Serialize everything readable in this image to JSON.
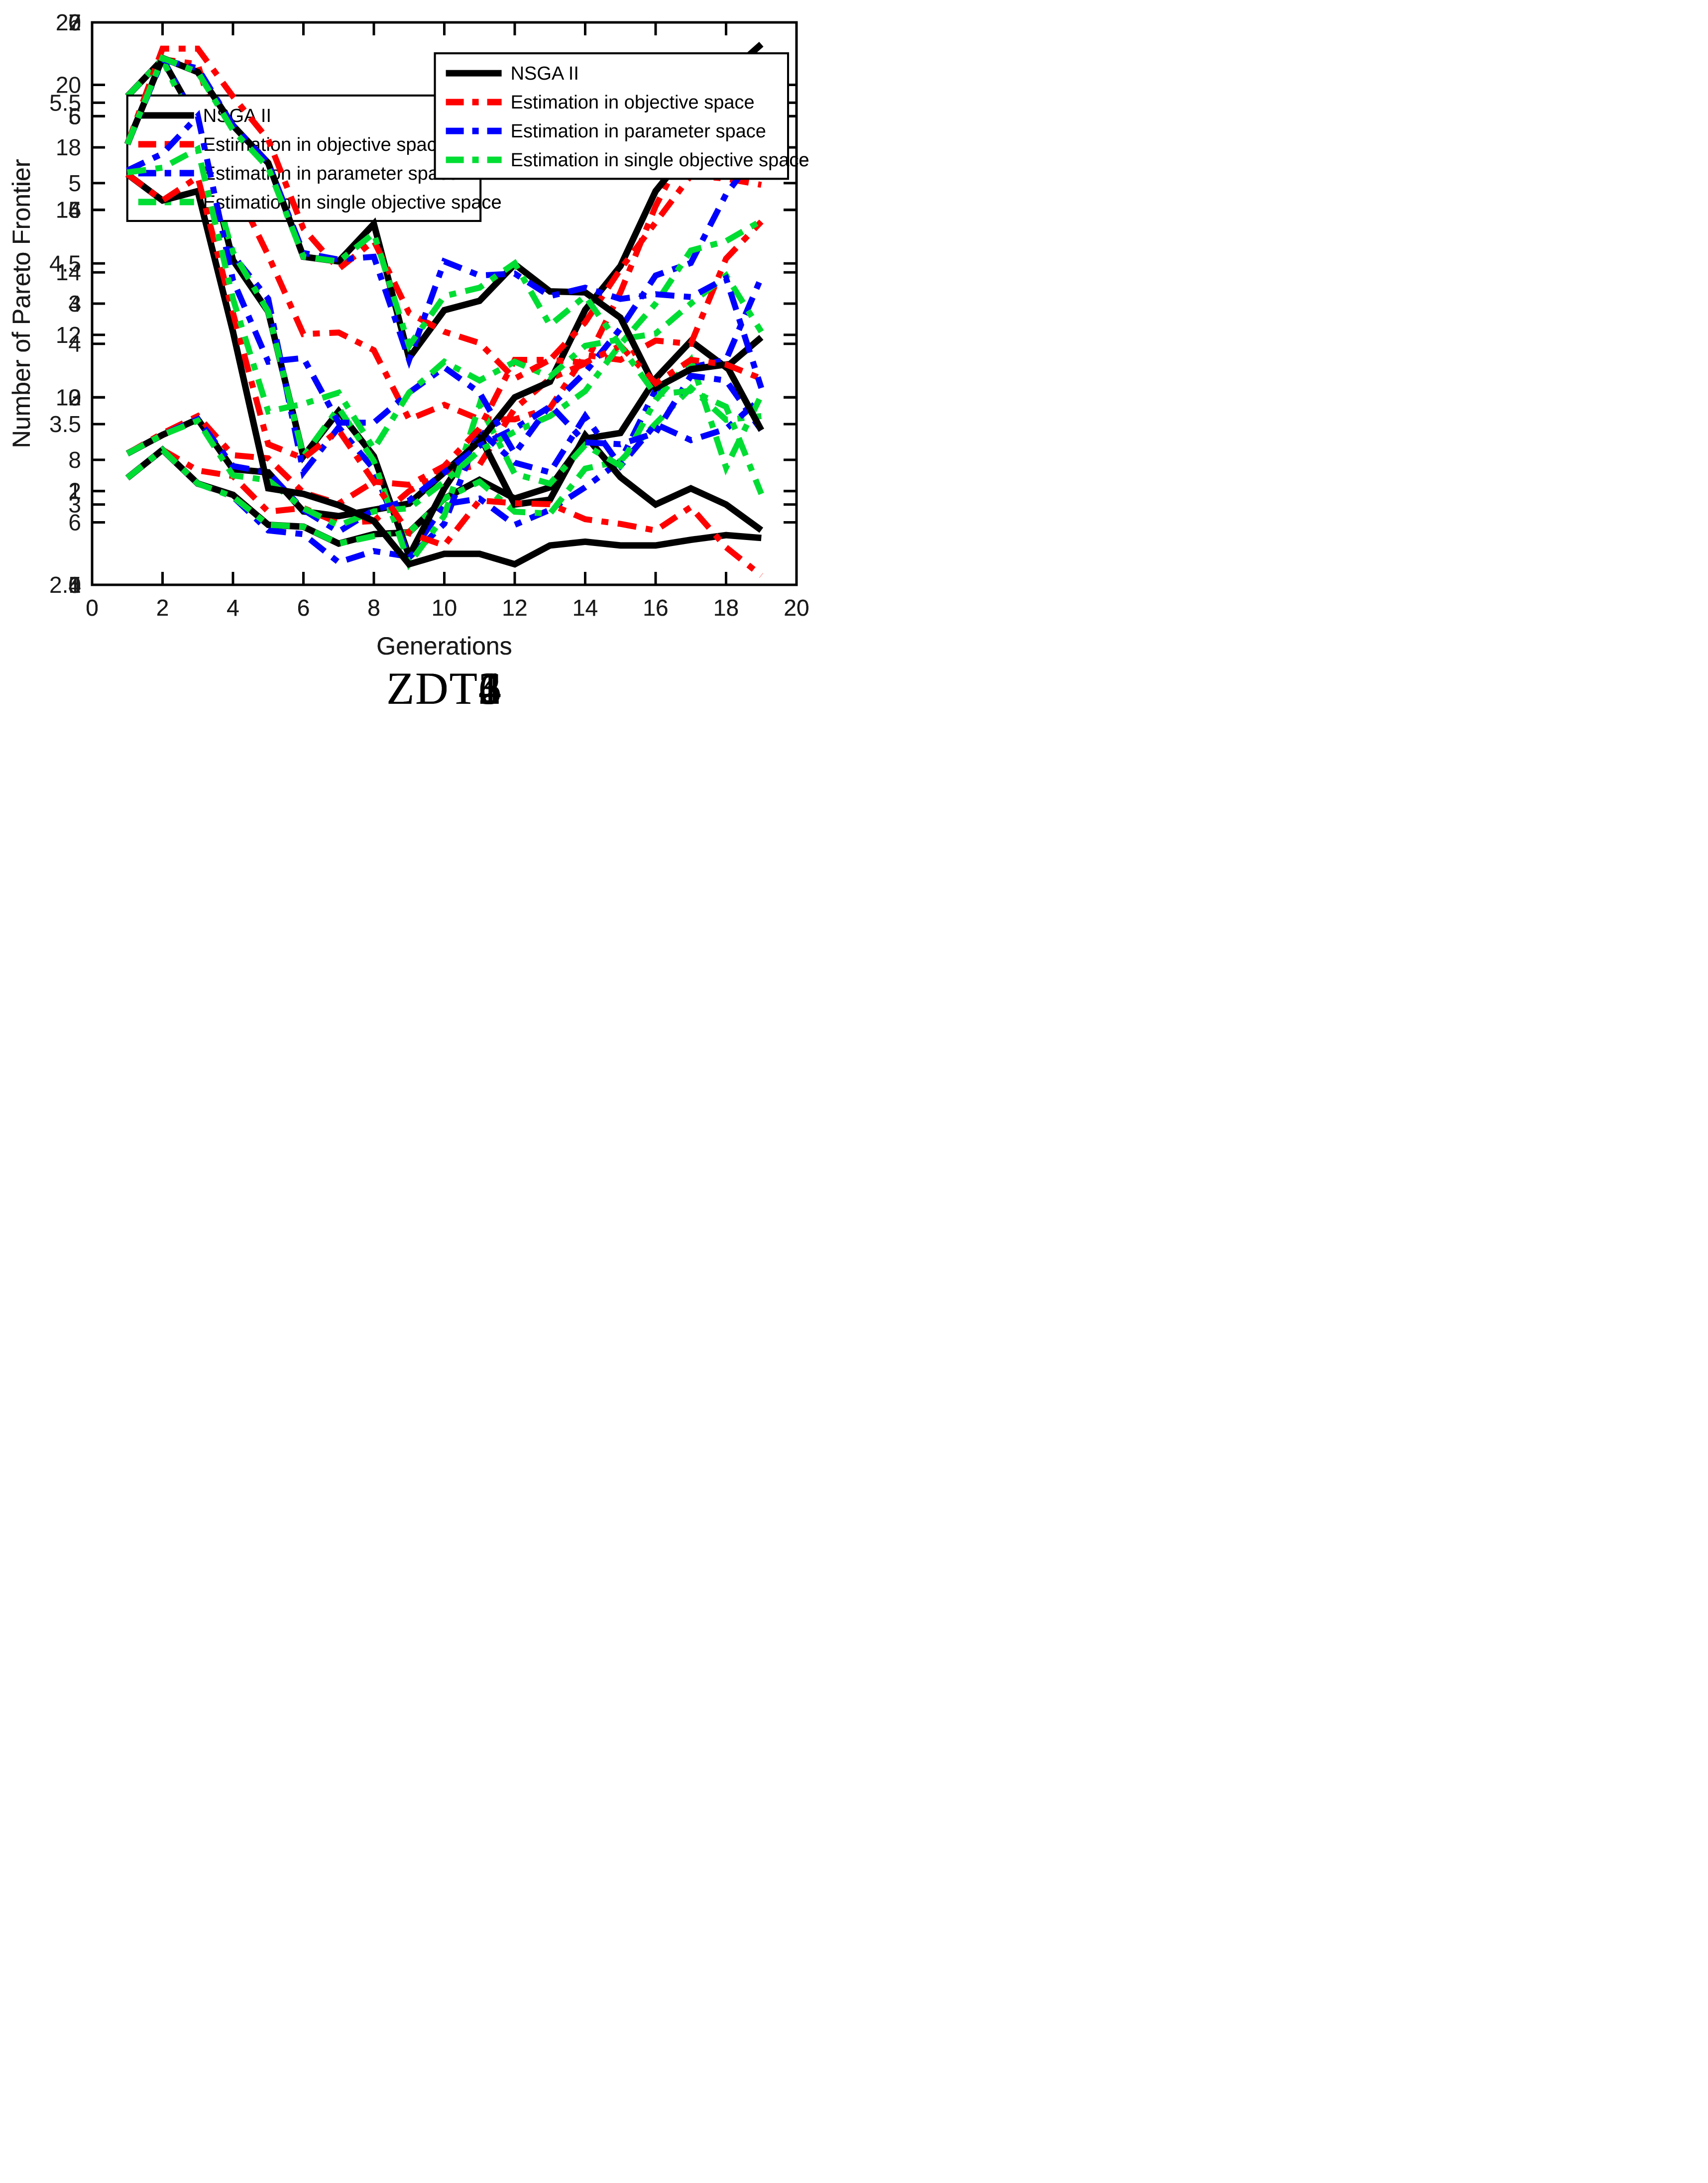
{
  "page": {
    "background": "#ffffff"
  },
  "chart_data": [
    {
      "id": "zdt1",
      "type": "line",
      "title": "ZDT1",
      "xlabel": "Generations",
      "ylabel": "Number of Pareto Frontier",
      "xlim": [
        0,
        20
      ],
      "ylim": [
        5,
        20
      ],
      "xticks": [
        0,
        2,
        4,
        6,
        8,
        10,
        12,
        14,
        16,
        18,
        20
      ],
      "yticks": [
        5,
        10,
        15,
        20
      ],
      "grid": false,
      "legend_position": "top-left",
      "x": [
        1,
        2,
        3,
        4,
        5,
        6,
        7,
        8,
        9,
        10,
        11,
        12,
        13,
        14,
        15,
        16,
        17,
        18,
        19
      ],
      "series": [
        {
          "name": "NSGA II",
          "color": "#000000",
          "style": "solid",
          "values": [
            7.85,
            8.6,
            7.7,
            7.4,
            6.6,
            6.55,
            6.1,
            6.35,
            6.4,
            7.3,
            7.8,
            7.3,
            7.6,
            8.9,
            9.05,
            10.5,
            11.5,
            10.8,
            11.6
          ]
        },
        {
          "name": "Estimation in objective space",
          "color": "#ff0000",
          "style": "dash-dot",
          "values": [
            7.85,
            8.6,
            8.05,
            7.9,
            6.95,
            7.05,
            6.65,
            6.7,
            7.5,
            8.0,
            8.2,
            9.7,
            10.5,
            10.9,
            12.8,
            15.1,
            16.9,
            17.9,
            18.2
          ]
        },
        {
          "name": "Estimation in parameter space",
          "color": "#0000ff",
          "style": "dash-dot",
          "values": [
            7.85,
            8.6,
            7.7,
            7.35,
            6.45,
            6.35,
            5.6,
            5.9,
            5.75,
            7.15,
            7.3,
            6.6,
            7.0,
            7.6,
            8.3,
            10.2,
            10.8,
            11.0,
            13.2
          ]
        },
        {
          "name": "Estimation in single objective space",
          "color": "#00dd33",
          "style": "dash-dot",
          "values": [
            7.85,
            8.6,
            7.7,
            7.35,
            6.6,
            6.55,
            6.1,
            6.3,
            6.4,
            7.3,
            7.75,
            6.95,
            6.9,
            8.1,
            8.3,
            9.3,
            10.25,
            9.4,
            9.5
          ]
        }
      ]
    },
    {
      "id": "zdt2",
      "type": "line",
      "title": "ZDT2",
      "xlabel": "Generations",
      "ylabel": "Number of Pareto Frontier",
      "xlim": [
        0,
        20
      ],
      "ylim": [
        2.5,
        6
      ],
      "xticks": [
        0,
        2,
        4,
        6,
        8,
        10,
        12,
        14,
        16,
        18,
        20
      ],
      "yticks": [
        2.5,
        3,
        3.5,
        4,
        4.5,
        5,
        5.5,
        6
      ],
      "grid": false,
      "legend_position": "top-right",
      "x": [
        1,
        2,
        3,
        4,
        5,
        6,
        7,
        8,
        9,
        10,
        11,
        12,
        13,
        14,
        15,
        16,
        17,
        18,
        19
      ],
      "series": [
        {
          "name": "NSGA II",
          "color": "#000000",
          "style": "solid",
          "values": [
            5.54,
            5.77,
            5.38,
            4.52,
            4.2,
            3.3,
            3.58,
            3.3,
            2.68,
            3.1,
            3.43,
            3.0,
            3.03,
            3.43,
            3.17,
            3.0,
            3.1,
            3.0,
            2.84
          ]
        },
        {
          "name": "Estimation in objective space",
          "color": "#ff0000",
          "style": "dash-dot",
          "values": [
            5.54,
            5.77,
            5.74,
            5.0,
            4.55,
            4.06,
            4.07,
            3.96,
            3.53,
            3.62,
            3.53,
            3.53,
            3.6,
            3.93,
            3.9,
            4.02,
            4.0,
            4.53,
            4.76
          ]
        },
        {
          "name": "Estimation in parameter space",
          "color": "#0000ff",
          "style": "dash-dot",
          "values": [
            5.54,
            5.77,
            5.38,
            4.55,
            4.28,
            3.2,
            3.48,
            3.22,
            2.67,
            2.88,
            3.46,
            3.26,
            3.2,
            3.55,
            3.24,
            3.5,
            3.4,
            3.47,
            3.66
          ]
        },
        {
          "name": "Estimation in single objective space",
          "color": "#00dd33",
          "style": "dash-dot",
          "values": [
            5.54,
            5.77,
            5.3,
            4.57,
            4.2,
            3.3,
            3.6,
            3.27,
            2.63,
            2.93,
            3.62,
            3.19,
            3.13,
            3.37,
            3.24,
            3.65,
            3.9,
            3.23,
            3.68
          ]
        }
      ]
    },
    {
      "id": "zdt3",
      "type": "line",
      "title": "ZDT3",
      "xlabel": "Generations",
      "ylabel": "Number of Pareto Frontier",
      "xlim": [
        0,
        20
      ],
      "ylim": [
        4,
        22
      ],
      "xticks": [
        0,
        2,
        4,
        6,
        8,
        10,
        12,
        14,
        16,
        18,
        20
      ],
      "yticks": [
        4,
        6,
        8,
        10,
        12,
        14,
        16,
        18,
        20,
        22
      ],
      "grid": false,
      "legend_position": "top-left",
      "x": [
        1,
        2,
        3,
        4,
        5,
        6,
        7,
        8,
        9,
        10,
        11,
        12,
        13,
        14,
        15,
        16,
        17,
        18,
        19
      ],
      "series": [
        {
          "name": "NSGA II",
          "color": "#000000",
          "style": "solid",
          "values": [
            8.2,
            8.8,
            9.3,
            7.7,
            7.6,
            6.35,
            6.2,
            6.4,
            6.6,
            7.6,
            8.6,
            10.0,
            10.5,
            12.8,
            14.2,
            16.6,
            18.0,
            20.3,
            21.3
          ]
        },
        {
          "name": "Estimation in objective space",
          "color": "#ff0000",
          "style": "dash-dot",
          "values": [
            8.2,
            8.85,
            9.4,
            8.15,
            8.05,
            6.95,
            6.6,
            7.3,
            7.2,
            7.8,
            9.0,
            11.2,
            11.2,
            12.4,
            14.1,
            15.6,
            17.1,
            17.0,
            16.8
          ]
        },
        {
          "name": "Estimation in parameter space",
          "color": "#0000ff",
          "style": "dash-dot",
          "values": [
            8.2,
            8.8,
            9.3,
            7.8,
            7.6,
            6.4,
            5.7,
            6.4,
            6.7,
            7.6,
            8.45,
            9.0,
            9.7,
            10.8,
            12.2,
            13.9,
            14.3,
            16.5,
            18.0
          ]
        },
        {
          "name": "Estimation in single objective space",
          "color": "#00dd33",
          "style": "dash-dot",
          "values": [
            8.2,
            8.8,
            9.25,
            7.5,
            7.35,
            6.45,
            5.9,
            6.35,
            6.45,
            7.3,
            8.3,
            8.9,
            9.4,
            10.2,
            11.7,
            13.0,
            14.7,
            15.0,
            15.65
          ]
        }
      ]
    },
    {
      "id": "zdt4",
      "type": "line",
      "title": "ZDT4",
      "xlabel": "Generations",
      "ylabel": "Number of Pareto Frontier",
      "xlim": [
        0,
        20
      ],
      "ylim": [
        1,
        7
      ],
      "xticks": [
        0,
        2,
        4,
        6,
        8,
        10,
        12,
        14,
        16,
        18,
        20
      ],
      "yticks": [
        1,
        2,
        3,
        4,
        5,
        6,
        7
      ],
      "grid": false,
      "legend_position": "top-right",
      "x": [
        1,
        2,
        3,
        4,
        5,
        6,
        7,
        8,
        9,
        10,
        11,
        12,
        13,
        14,
        15,
        16,
        17,
        18,
        19
      ],
      "series": [
        {
          "name": "NSGA II",
          "color": "#000000",
          "style": "solid",
          "values": [
            5.38,
            5.1,
            5.2,
            3.7,
            2.03,
            1.97,
            1.85,
            1.68,
            1.22,
            1.33,
            1.33,
            1.22,
            1.42,
            1.46,
            1.42,
            1.42,
            1.48,
            1.53,
            1.5
          ]
        },
        {
          "name": "Estimation in objective space",
          "color": "#ff0000",
          "style": "dash-dot",
          "values": [
            5.38,
            5.1,
            5.35,
            3.9,
            2.5,
            2.35,
            2.65,
            2.1,
            1.55,
            1.42,
            1.9,
            1.87,
            1.86,
            1.7,
            1.65,
            1.58,
            1.83,
            1.4,
            1.1
          ]
        },
        {
          "name": "Estimation in parameter space",
          "color": "#0000ff",
          "style": "dash-dot",
          "values": [
            5.42,
            5.6,
            6.0,
            4.25,
            3.38,
            3.42,
            2.73,
            2.73,
            3.05,
            3.32,
            3.05,
            2.4,
            2.92,
            2.52,
            2.5,
            2.62,
            3.23,
            3.18,
            2.65
          ]
        },
        {
          "name": "Estimation in single objective space",
          "color": "#00dd33",
          "style": "dash-dot",
          "values": [
            5.4,
            5.45,
            5.65,
            4.05,
            2.85,
            2.93,
            3.05,
            2.45,
            3.05,
            3.38,
            3.18,
            3.38,
            3.22,
            3.55,
            3.62,
            3.68,
            4.0,
            4.3,
            3.7
          ]
        }
      ]
    },
    {
      "id": "zdt6",
      "type": "line",
      "title": "ZDT6",
      "xlabel": "Generations",
      "ylabel": "Number of Pareto Frontier",
      "xlim": [
        0,
        20
      ],
      "ylim": [
        0,
        6
      ],
      "xticks": [
        0,
        2,
        4,
        6,
        8,
        10,
        12,
        14,
        16,
        18,
        20
      ],
      "yticks": [
        0,
        1,
        2,
        3,
        4,
        5,
        6
      ],
      "grid": false,
      "legend_position": "top-right",
      "x": [
        1,
        2,
        3,
        4,
        5,
        6,
        7,
        8,
        9,
        10,
        11,
        12,
        13,
        14,
        15,
        16,
        17,
        18,
        19
      ],
      "series": [
        {
          "name": "NSGA II",
          "color": "#000000",
          "style": "solid",
          "values": [
            4.7,
            5.62,
            5.47,
            4.9,
            4.5,
            3.5,
            3.45,
            3.85,
            2.42,
            2.93,
            3.03,
            3.42,
            3.13,
            3.12,
            2.85,
            2.1,
            2.3,
            2.35,
            1.65
          ]
        },
        {
          "name": "Estimation in objective space",
          "color": "#ff0000",
          "style": "dash-dot",
          "values": [
            4.7,
            5.72,
            5.72,
            5.21,
            4.75,
            3.8,
            3.37,
            3.67,
            2.9,
            2.7,
            2.58,
            2.2,
            2.4,
            2.37,
            2.55,
            2.15,
            2.4,
            2.35,
            2.2
          ]
        },
        {
          "name": "Estimation in parameter space",
          "color": "#0000ff",
          "style": "dash-dot",
          "values": [
            4.7,
            5.6,
            5.51,
            4.9,
            4.5,
            3.54,
            3.47,
            3.5,
            2.4,
            3.45,
            3.3,
            3.32,
            3.08,
            3.17,
            3.05,
            3.1,
            3.07,
            3.27,
            2.1
          ]
        },
        {
          "name": "Estimation in single objective space",
          "color": "#00dd33",
          "style": "dash-dot",
          "values": [
            4.7,
            5.62,
            5.47,
            4.85,
            4.45,
            3.5,
            3.45,
            3.75,
            2.55,
            3.08,
            3.17,
            3.43,
            2.77,
            3.08,
            2.55,
            2.03,
            2.07,
            1.9,
            0.97
          ]
        }
      ]
    }
  ]
}
